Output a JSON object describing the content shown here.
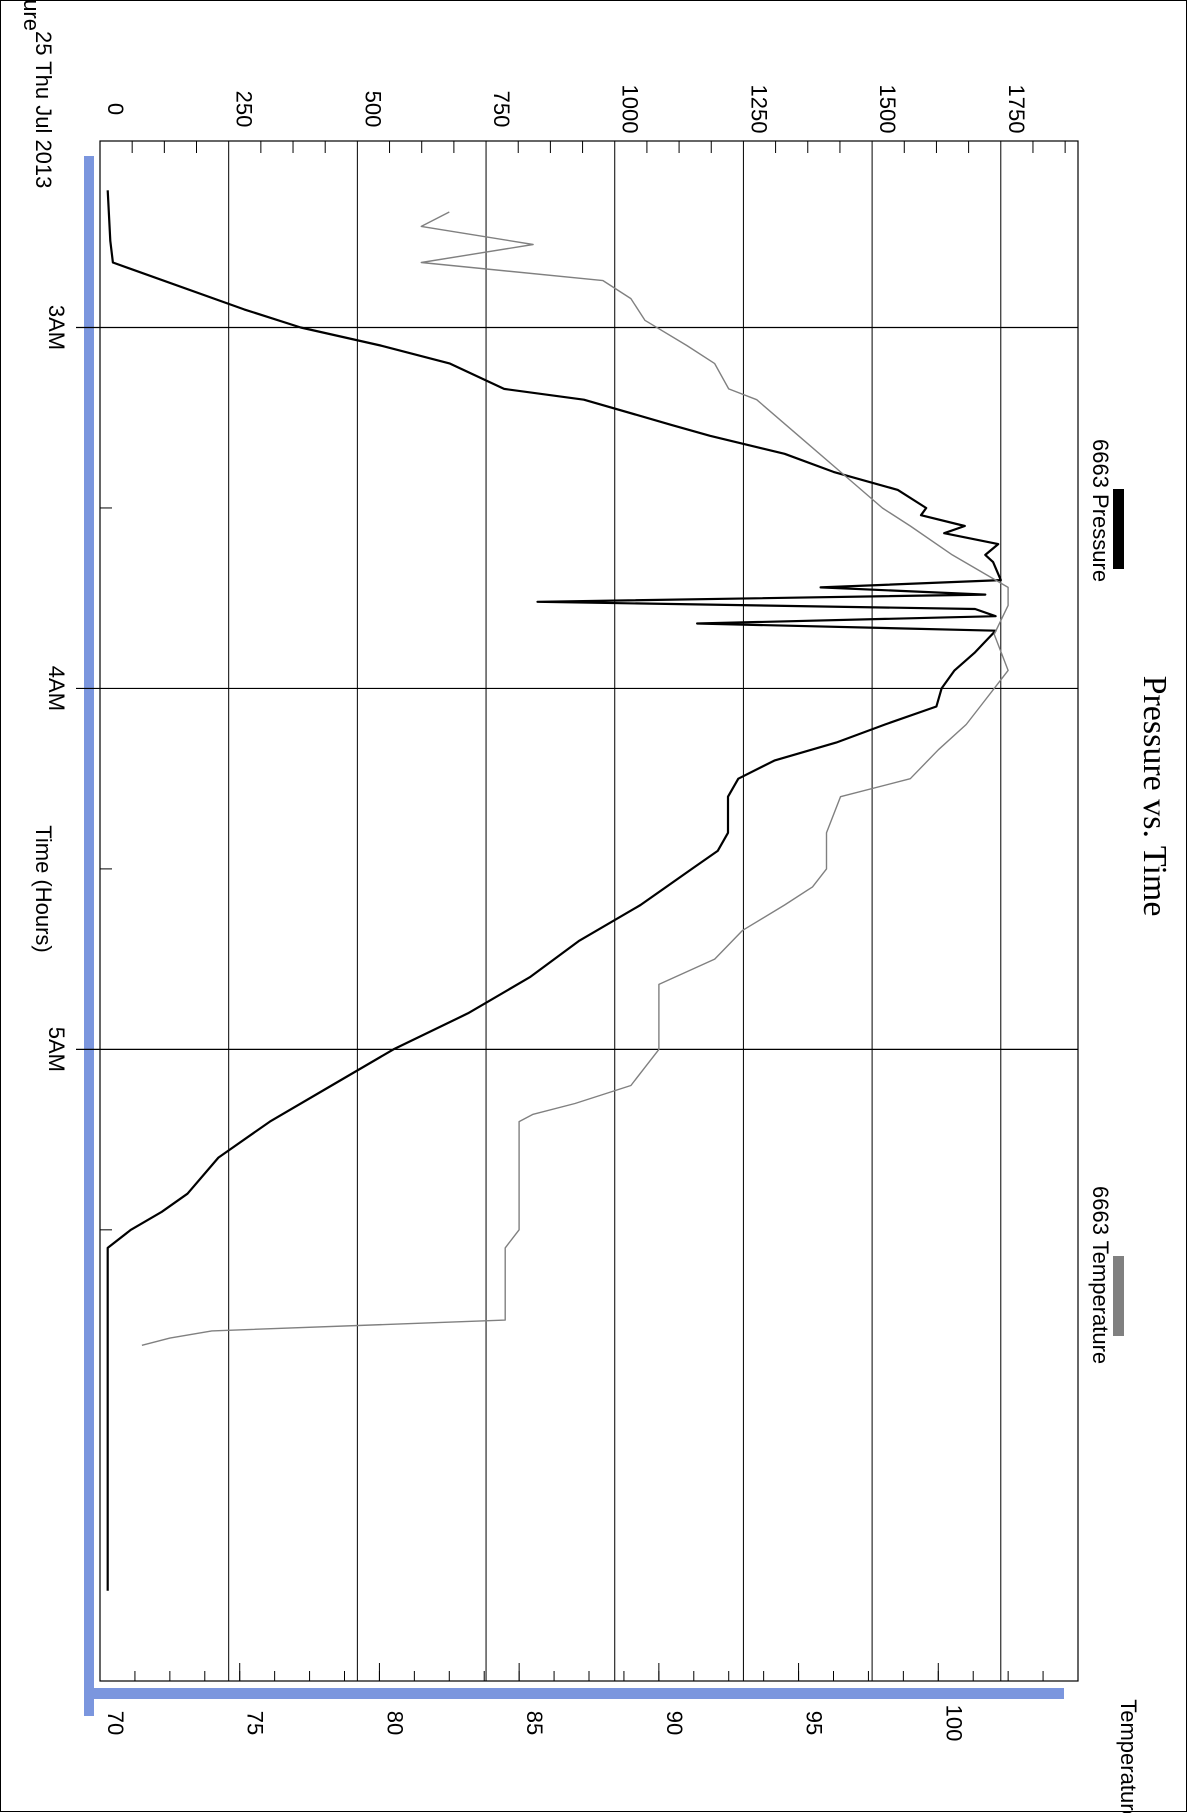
{
  "chart_data": {
    "type": "line",
    "title": "Pressure vs. Time",
    "date_label": "25 Thu Jul 2013",
    "xlabel": "Time (Hours)",
    "ylabel_left": "Pressure",
    "ylabel_right": "Temperature",
    "x_unit": "hours",
    "x_range": [
      2.4833,
      6.75
    ],
    "x_ticks": [
      {
        "value": 3,
        "label": "3AM"
      },
      {
        "value": 4,
        "label": "4AM"
      },
      {
        "value": 5,
        "label": "5AM"
      }
    ],
    "x_minor_ticks": [
      3.5,
      4.5,
      5.5
    ],
    "pressure_axis": {
      "range": [
        0,
        1900
      ],
      "ticks": [
        0,
        250,
        500,
        750,
        1000,
        1250,
        1500,
        1750
      ]
    },
    "temperature_axis": {
      "range": [
        70,
        105
      ],
      "ticks": [
        70,
        75,
        80,
        85,
        90,
        95,
        100
      ]
    },
    "grid": true,
    "legend_position": "top",
    "series": [
      {
        "name": "6663 Pressure",
        "axis": "pressure",
        "color": "#000000",
        "points": [
          [
            2.62,
            15
          ],
          [
            2.76,
            20
          ],
          [
            2.82,
            25
          ],
          [
            2.95,
            280
          ],
          [
            3.0,
            390
          ],
          [
            3.05,
            545
          ],
          [
            3.1,
            680
          ],
          [
            3.17,
            785
          ],
          [
            3.2,
            940
          ],
          [
            3.27,
            1110
          ],
          [
            3.3,
            1185
          ],
          [
            3.35,
            1330
          ],
          [
            3.4,
            1425
          ],
          [
            3.45,
            1550
          ],
          [
            3.5,
            1605
          ],
          [
            3.52,
            1595
          ],
          [
            3.55,
            1680
          ],
          [
            3.57,
            1640
          ],
          [
            3.6,
            1745
          ],
          [
            3.63,
            1720
          ],
          [
            3.65,
            1735
          ],
          [
            3.7,
            1750
          ],
          [
            3.72,
            1400
          ],
          [
            3.74,
            1720
          ],
          [
            3.76,
            850
          ],
          [
            3.78,
            1700
          ],
          [
            3.8,
            1740
          ],
          [
            3.82,
            1160
          ],
          [
            3.84,
            1740
          ],
          [
            3.9,
            1700
          ],
          [
            3.95,
            1660
          ],
          [
            4.0,
            1635
          ],
          [
            4.05,
            1625
          ],
          [
            4.1,
            1525
          ],
          [
            4.15,
            1430
          ],
          [
            4.2,
            1310
          ],
          [
            4.25,
            1240
          ],
          [
            4.3,
            1220
          ],
          [
            4.4,
            1220
          ],
          [
            4.45,
            1200
          ],
          [
            4.5,
            1150
          ],
          [
            4.6,
            1050
          ],
          [
            4.7,
            930
          ],
          [
            4.8,
            835
          ],
          [
            4.9,
            715
          ],
          [
            5.0,
            570
          ],
          [
            5.1,
            450
          ],
          [
            5.2,
            330
          ],
          [
            5.3,
            230
          ],
          [
            5.4,
            170
          ],
          [
            5.45,
            120
          ],
          [
            5.5,
            60
          ],
          [
            5.55,
            15
          ],
          [
            6.0,
            15
          ],
          [
            6.5,
            15
          ]
        ]
      },
      {
        "name": "6663 Temperature",
        "axis": "temperature",
        "color": "#808080",
        "points": [
          [
            2.68,
            82.5
          ],
          [
            2.72,
            81.5
          ],
          [
            2.77,
            85.5
          ],
          [
            2.82,
            81.5
          ],
          [
            2.87,
            88.0
          ],
          [
            2.92,
            89.0
          ],
          [
            2.98,
            89.5
          ],
          [
            3.05,
            91.0
          ],
          [
            3.1,
            92.0
          ],
          [
            3.17,
            92.5
          ],
          [
            3.2,
            93.5
          ],
          [
            3.3,
            95.0
          ],
          [
            3.4,
            96.5
          ],
          [
            3.5,
            98.0
          ],
          [
            3.55,
            99.0
          ],
          [
            3.63,
            100.5
          ],
          [
            3.72,
            102.5
          ],
          [
            3.77,
            102.5
          ],
          [
            3.85,
            102.0
          ],
          [
            3.95,
            102.5
          ],
          [
            4.0,
            102.0
          ],
          [
            4.05,
            101.5
          ],
          [
            4.1,
            101.0
          ],
          [
            4.17,
            100.0
          ],
          [
            4.25,
            99.0
          ],
          [
            4.3,
            96.5
          ],
          [
            4.4,
            96.0
          ],
          [
            4.5,
            96.0
          ],
          [
            4.55,
            95.5
          ],
          [
            4.6,
            94.5
          ],
          [
            4.67,
            93.0
          ],
          [
            4.75,
            92.0
          ],
          [
            4.82,
            90.0
          ],
          [
            4.88,
            90.0
          ],
          [
            5.0,
            90.0
          ],
          [
            5.05,
            89.5
          ],
          [
            5.1,
            89.0
          ],
          [
            5.15,
            87.0
          ],
          [
            5.18,
            85.5
          ],
          [
            5.2,
            85.0
          ],
          [
            5.25,
            85.0
          ],
          [
            5.4,
            85.0
          ],
          [
            5.5,
            85.0
          ],
          [
            5.55,
            84.5
          ],
          [
            5.6,
            84.5
          ],
          [
            5.75,
            84.5
          ],
          [
            5.76,
            81.0
          ],
          [
            5.78,
            74.0
          ],
          [
            5.8,
            72.5
          ],
          [
            5.82,
            71.5
          ]
        ]
      }
    ]
  }
}
